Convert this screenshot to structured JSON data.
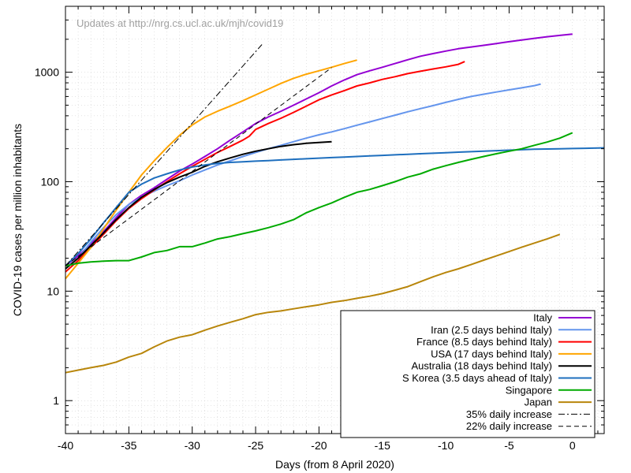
{
  "chart_data": {
    "type": "line",
    "title": "",
    "annotation": "Updates at http://nrg.cs.ucl.ac.uk/mjh/covid19",
    "xlabel": "Days (from 8 April 2020)",
    "ylabel": "COVID-19 cases per million inhabitants",
    "xlim": [
      -40,
      2.5
    ],
    "ylim": [
      0.5,
      4000
    ],
    "yscale": "log",
    "x_ticks": [
      -40,
      -35,
      -30,
      -25,
      -20,
      -15,
      -10,
      -5,
      0
    ],
    "x_tick_labels": [
      "-40",
      "-35",
      "-30",
      "-25",
      "-20",
      "-15",
      "-10",
      "-5",
      "0"
    ],
    "y_ticks": [
      1,
      10,
      100,
      1000
    ],
    "y_tick_labels": [
      "1",
      "10",
      "100",
      "1000"
    ],
    "grid": true,
    "legend_position": "bottom-right",
    "series": [
      {
        "name": "Italy",
        "color": "#9400d3",
        "style": "solid",
        "x": [
          -40,
          -39,
          -38,
          -37,
          -36,
          -35,
          -34,
          -33,
          -32,
          -31,
          -30,
          -29,
          -28,
          -27,
          -26,
          -25,
          -24,
          -23,
          -22,
          -21,
          -20,
          -19,
          -18,
          -17,
          -16,
          -15,
          -14,
          -13,
          -12,
          -11,
          -10,
          -9,
          -8,
          -7,
          -6,
          -5,
          -4,
          -3,
          -2,
          -1,
          0
        ],
        "y": [
          17,
          21,
          27,
          35,
          47,
          62,
          75,
          88,
          105,
          125,
          145,
          170,
          200,
          240,
          285,
          340,
          390,
          440,
          500,
          570,
          650,
          750,
          850,
          950,
          1030,
          1110,
          1200,
          1300,
          1400,
          1480,
          1560,
          1640,
          1700,
          1760,
          1830,
          1900,
          1970,
          2040,
          2110,
          2170,
          2230
        ]
      },
      {
        "name": "Iran (2.5 days behind Italy)",
        "color": "#6495ed",
        "style": "solid",
        "x": [
          -40,
          -39,
          -38,
          -37,
          -36,
          -35,
          -34,
          -33,
          -32,
          -31,
          -30,
          -29,
          -28,
          -27,
          -26,
          -25,
          -24,
          -23,
          -22,
          -21,
          -20,
          -19,
          -18,
          -17,
          -16,
          -15,
          -14,
          -13,
          -12,
          -11,
          -10,
          -9,
          -8,
          -7,
          -6,
          -5,
          -4,
          -3,
          -2.5
        ],
        "y": [
          16,
          20,
          28,
          38,
          50,
          62,
          72,
          82,
          92,
          102,
          115,
          128,
          142,
          155,
          170,
          185,
          200,
          215,
          232,
          250,
          268,
          285,
          305,
          328,
          352,
          378,
          405,
          435,
          465,
          495,
          530,
          565,
          600,
          630,
          660,
          690,
          720,
          755,
          780
        ]
      },
      {
        "name": "France (8.5 days behind Italy)",
        "color": "#ff0000",
        "style": "solid",
        "x": [
          -40,
          -39,
          -38,
          -37,
          -36,
          -35,
          -34,
          -33,
          -32,
          -31,
          -30,
          -29,
          -28,
          -27,
          -26,
          -25.5,
          -25,
          -24,
          -23,
          -22,
          -21,
          -20,
          -19,
          -18,
          -17,
          -16,
          -15,
          -14,
          -13,
          -12,
          -11,
          -10,
          -9,
          -8.5
        ],
        "y": [
          15,
          19,
          25,
          33,
          44,
          57,
          70,
          84,
          100,
          118,
          138,
          160,
          185,
          210,
          240,
          260,
          300,
          340,
          380,
          430,
          490,
          560,
          620,
          680,
          750,
          800,
          860,
          910,
          970,
          1020,
          1070,
          1120,
          1180,
          1250
        ]
      },
      {
        "name": "USA (17 days behind Italy)",
        "color": "#ffa500",
        "style": "solid",
        "x": [
          -40,
          -39,
          -38,
          -37,
          -36,
          -35,
          -34,
          -33,
          -32,
          -31,
          -30,
          -29,
          -28,
          -27,
          -26,
          -25,
          -24,
          -23,
          -22,
          -21,
          -20,
          -19,
          -18,
          -17
        ],
        "y": [
          13,
          18,
          25,
          37,
          55,
          80,
          115,
          155,
          205,
          265,
          330,
          390,
          440,
          490,
          550,
          620,
          700,
          790,
          880,
          960,
          1030,
          1110,
          1200,
          1290
        ]
      },
      {
        "name": "Australia (18 days behind Italy)",
        "color": "#000000",
        "style": "solid",
        "x": [
          -40,
          -39,
          -38,
          -37,
          -36,
          -35,
          -34,
          -33,
          -32,
          -31,
          -30,
          -29,
          -28,
          -27,
          -26,
          -25,
          -24,
          -23,
          -22,
          -21,
          -20,
          -19
        ],
        "y": [
          16,
          20,
          26,
          34,
          45,
          58,
          72,
          85,
          98,
          110,
          122,
          138,
          152,
          165,
          178,
          190,
          200,
          210,
          218,
          224,
          228,
          232
        ]
      },
      {
        "name": "S Korea (3.5 days ahead of Italy)",
        "color": "#1e6fbe",
        "style": "solid",
        "x": [
          -40,
          -39,
          -38,
          -37,
          -36,
          -35,
          -34,
          -33,
          -32,
          -31,
          -30,
          -29,
          -28,
          -27,
          -26,
          -25,
          -24,
          -23,
          -22,
          -21,
          -20,
          -19,
          -18,
          -17,
          -16,
          -15,
          -14,
          -13,
          -12,
          -11,
          -10,
          -9,
          -8,
          -7,
          -6,
          -5,
          -4,
          -3,
          -2,
          -1,
          0,
          1,
          2.5
        ],
        "y": [
          17,
          22,
          30,
          42,
          58,
          80,
          95,
          108,
          118,
          128,
          136,
          142,
          147,
          150,
          152,
          154,
          156,
          158,
          160,
          162,
          164,
          166,
          168,
          170,
          172,
          174,
          176,
          178,
          180,
          182,
          184,
          186,
          188,
          190,
          192,
          194,
          196,
          198,
          199,
          200,
          201,
          202,
          204
        ]
      },
      {
        "name": "Singapore",
        "color": "#00aa00",
        "style": "solid",
        "x": [
          -40,
          -39,
          -38,
          -37,
          -36,
          -35,
          -34,
          -33,
          -32,
          -31,
          -30,
          -29,
          -28,
          -27,
          -26,
          -25,
          -24,
          -23,
          -22,
          -21,
          -20,
          -19,
          -18,
          -17,
          -16,
          -15,
          -14,
          -13,
          -12,
          -11,
          -10,
          -9,
          -8,
          -7,
          -6,
          -5,
          -4,
          -3,
          -2,
          -1,
          0
        ],
        "y": [
          17,
          18,
          18.5,
          18.8,
          19,
          19,
          20.5,
          22.5,
          23.5,
          25.5,
          25.5,
          27.5,
          30,
          31.5,
          33.5,
          35.5,
          38,
          41,
          45,
          52,
          58,
          64,
          72,
          80,
          85,
          92,
          100,
          110,
          118,
          130,
          140,
          150,
          160,
          170,
          180,
          190,
          200,
          215,
          230,
          250,
          280
        ]
      },
      {
        "name": "Japan",
        "color": "#b8860b",
        "style": "solid",
        "x": [
          -40,
          -39,
          -38,
          -37,
          -36,
          -35,
          -34,
          -33,
          -32,
          -31,
          -30,
          -29,
          -28,
          -27,
          -26,
          -25,
          -24,
          -23,
          -22,
          -21,
          -20,
          -19,
          -18,
          -17,
          -16,
          -15,
          -14,
          -13,
          -12,
          -11,
          -10,
          -9,
          -8,
          -7,
          -6,
          -5,
          -4,
          -3,
          -2,
          -1
        ],
        "y": [
          1.8,
          1.9,
          2.0,
          2.1,
          2.25,
          2.5,
          2.7,
          3.1,
          3.5,
          3.8,
          4.0,
          4.4,
          4.8,
          5.2,
          5.6,
          6.1,
          6.4,
          6.6,
          6.9,
          7.2,
          7.5,
          7.9,
          8.2,
          8.6,
          9.0,
          9.5,
          10.2,
          11.0,
          12.2,
          13.5,
          14.8,
          16.0,
          17.5,
          19.2,
          21.0,
          23.0,
          25.2,
          27.5,
          30.0,
          33.0
        ]
      },
      {
        "name": "35% daily increase",
        "color": "#000000",
        "style": "dashdot",
        "x": [
          -40,
          -24.5
        ],
        "y": [
          17,
          1790
        ]
      },
      {
        "name": "22% daily increase",
        "color": "#000000",
        "style": "dashed",
        "x": [
          -40,
          -19
        ],
        "y": [
          17,
          1102
        ]
      }
    ]
  }
}
